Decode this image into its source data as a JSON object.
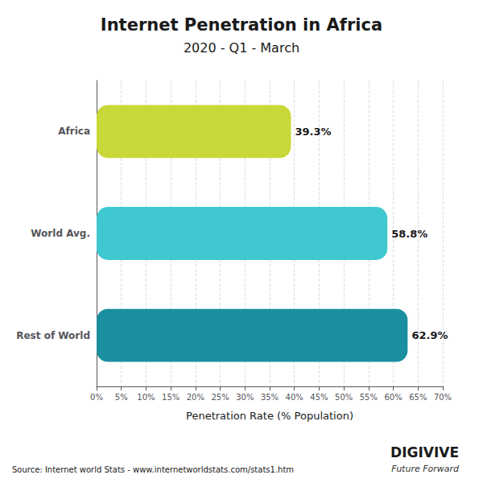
{
  "chart_data": {
    "type": "bar",
    "orientation": "horizontal",
    "title": "Internet Penetration in Africa",
    "subtitle": "2020 - Q1 - March",
    "categories": [
      "Rest of World",
      "World Avg.",
      "Africa"
    ],
    "values": [
      62.9,
      58.8,
      39.3
    ],
    "value_labels": [
      "62.9%",
      "58.8%",
      "39.3%"
    ],
    "data_labels": true,
    "colors": [
      "#1a8fa0",
      "#40c8d0",
      "#c8d838"
    ],
    "xlabel": "Penetration Rate (% Population)",
    "xlim": [
      0,
      70
    ],
    "xticks": [
      {
        "value": 0,
        "label": "0%"
      },
      {
        "value": 5,
        "label": "5%"
      },
      {
        "value": 10,
        "label": "10%"
      },
      {
        "value": 15,
        "label": "15%"
      },
      {
        "value": 20,
        "label": "20%"
      },
      {
        "value": 25,
        "label": "25%"
      },
      {
        "value": 30,
        "label": "30%"
      },
      {
        "value": 35,
        "label": "35%"
      },
      {
        "value": 40,
        "label": "40%"
      },
      {
        "value": 45,
        "label": "45%"
      },
      {
        "value": 50,
        "label": "50%"
      },
      {
        "value": 55,
        "label": "55%"
      },
      {
        "value": 60,
        "label": "60%"
      },
      {
        "value": 65,
        "label": "65%"
      },
      {
        "value": 70,
        "label": "70%"
      }
    ],
    "grid": true,
    "annotations": [
      "Source: Internet world Stats - www.internetworldstats.com/stats1.htm",
      "DIGIVIVE",
      "Future Forward"
    ]
  }
}
